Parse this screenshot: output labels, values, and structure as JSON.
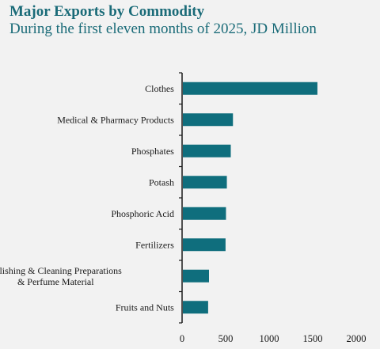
{
  "chart_data": {
    "type": "bar",
    "orientation": "horizontal",
    "title": "Major Exports by Commodity",
    "subtitle": "During the first eleven months of 2025, JD Million",
    "categories": [
      "Clothes",
      "Medical & Pharmacy Products",
      "Phosphates",
      "Potash",
      "Phosphoric Acid",
      "Fertilizers",
      "Polishing & Cleaning Preparations & Perfume Material",
      "Fruits and Nuts"
    ],
    "category_label_lines": [
      [
        "Clothes"
      ],
      [
        "Medical & Pharmacy Products"
      ],
      [
        "Phosphates"
      ],
      [
        "Potash"
      ],
      [
        "Phosphoric Acid"
      ],
      [
        "Fertilizers"
      ],
      [
        "Polishing & Cleaning Preparations",
        "& Perfume Material"
      ],
      [
        "Fruits and Nuts"
      ]
    ],
    "values": [
      1545,
      575,
      550,
      505,
      495,
      490,
      300,
      290
    ],
    "xlim": [
      0,
      2000
    ],
    "xticks": [
      0,
      500,
      1000,
      1500,
      2000
    ],
    "xlabel": "",
    "ylabel": "",
    "grid": false,
    "bar_color": "#0f6e7d"
  }
}
